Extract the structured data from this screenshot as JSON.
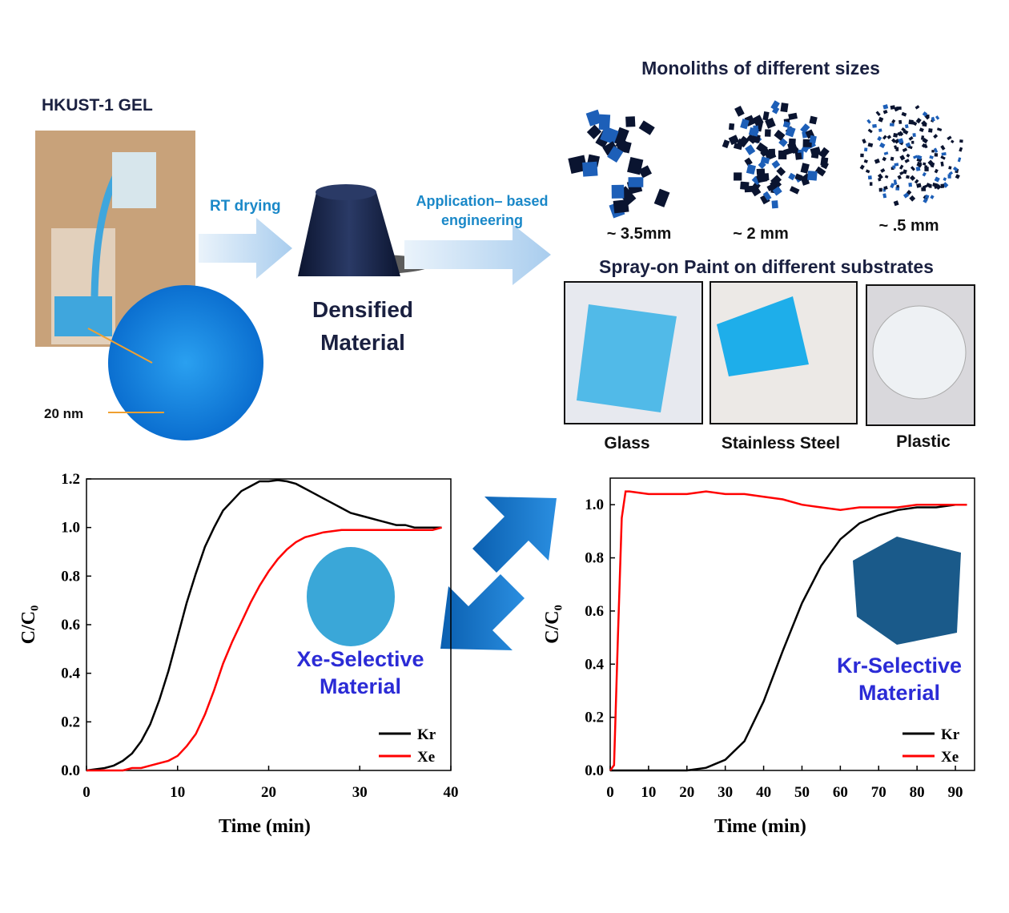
{
  "diagram": {
    "gel_title": "HKUST-1 GEL",
    "scale_bar": "20 nm",
    "step1": "RT drying",
    "densified": [
      "Densified",
      "Material"
    ],
    "step2": [
      "Application– based",
      "engineering"
    ],
    "monoliths_title": "Monoliths of different sizes",
    "sizes": [
      "~ 3.5mm",
      "~ 2 mm",
      "~ .5 mm"
    ],
    "paint_title": "Spray-on Paint on different substrates",
    "substrates": [
      "Glass",
      "Stainless Steel",
      "Plastic"
    ]
  },
  "chart_data": [
    {
      "type": "line",
      "xlabel": "Time (min)",
      "ylabel": "C/C₀",
      "annotation": [
        "Xe-Selective",
        "Material"
      ],
      "xlim": [
        0,
        40
      ],
      "xticks": [
        0,
        10,
        20,
        30,
        40
      ],
      "ylim": [
        0,
        1.2
      ],
      "yticks": [
        {
          "value": 0,
          "label": "0.0"
        },
        0.2,
        0.4,
        0.6,
        0.8,
        {
          "value": 1,
          "label": "1.0"
        },
        1.2
      ],
      "legend": "lower right",
      "x": [
        0,
        1,
        2,
        3,
        4,
        5,
        6,
        7,
        8,
        9,
        10,
        11,
        12,
        13,
        14,
        15,
        16,
        17,
        18,
        19,
        20,
        21,
        22,
        23,
        24,
        25,
        26,
        27,
        28,
        29,
        30,
        31,
        32,
        33,
        34,
        35,
        36,
        37,
        38,
        39
      ],
      "series": [
        {
          "name": "Kr",
          "color": "#000000",
          "values": [
            0,
            0.005,
            0.01,
            0.02,
            0.04,
            0.07,
            0.12,
            0.19,
            0.29,
            0.41,
            0.55,
            0.69,
            0.81,
            0.92,
            1.0,
            1.07,
            1.11,
            1.15,
            1.17,
            1.19,
            1.19,
            1.195,
            1.19,
            1.18,
            1.16,
            1.14,
            1.12,
            1.1,
            1.08,
            1.06,
            1.05,
            1.04,
            1.03,
            1.02,
            1.01,
            1.01,
            1.0,
            1.0,
            1.0,
            1.0
          ]
        },
        {
          "name": "Xe",
          "color": "#ff0000",
          "values": [
            0,
            0,
            0,
            0,
            0,
            0.01,
            0.01,
            0.02,
            0.03,
            0.04,
            0.06,
            0.1,
            0.15,
            0.23,
            0.33,
            0.44,
            0.53,
            0.61,
            0.69,
            0.76,
            0.82,
            0.87,
            0.91,
            0.94,
            0.96,
            0.97,
            0.98,
            0.985,
            0.99,
            0.99,
            0.99,
            0.99,
            0.99,
            0.99,
            0.99,
            0.99,
            0.99,
            0.99,
            0.99,
            1.0
          ]
        }
      ]
    },
    {
      "type": "line",
      "xlabel": "Time (min)",
      "ylabel": "C/C₀",
      "annotation": [
        "Kr-Selective",
        "Material"
      ],
      "xlim": [
        0,
        95
      ],
      "xticks": [
        0,
        10,
        20,
        30,
        40,
        50,
        60,
        70,
        80,
        90
      ],
      "ylim": [
        0,
        1.1
      ],
      "yticks": [
        {
          "value": 0,
          "label": "0.0"
        },
        0.2,
        0.4,
        0.6,
        0.8,
        {
          "value": 1,
          "label": "1.0"
        }
      ],
      "legend": "lower right",
      "x": [
        0,
        1,
        2,
        3,
        4,
        5,
        10,
        15,
        20,
        25,
        30,
        35,
        40,
        45,
        50,
        55,
        60,
        65,
        70,
        75,
        80,
        85,
        90,
        93
      ],
      "series": [
        {
          "name": "Kr",
          "color": "#000000",
          "values": [
            0,
            0,
            0,
            0,
            0,
            0,
            0,
            0,
            0,
            0.01,
            0.04,
            0.11,
            0.26,
            0.45,
            0.63,
            0.77,
            0.87,
            0.93,
            0.96,
            0.98,
            0.99,
            0.99,
            1.0,
            1.0
          ]
        },
        {
          "name": "Xe",
          "color": "#ff0000",
          "values": [
            0,
            0.02,
            0.5,
            0.95,
            1.05,
            1.05,
            1.04,
            1.04,
            1.04,
            1.05,
            1.04,
            1.04,
            1.03,
            1.02,
            1.0,
            0.99,
            0.98,
            0.99,
            0.99,
            0.99,
            1.0,
            1.0,
            1.0,
            1.0
          ]
        }
      ]
    }
  ]
}
